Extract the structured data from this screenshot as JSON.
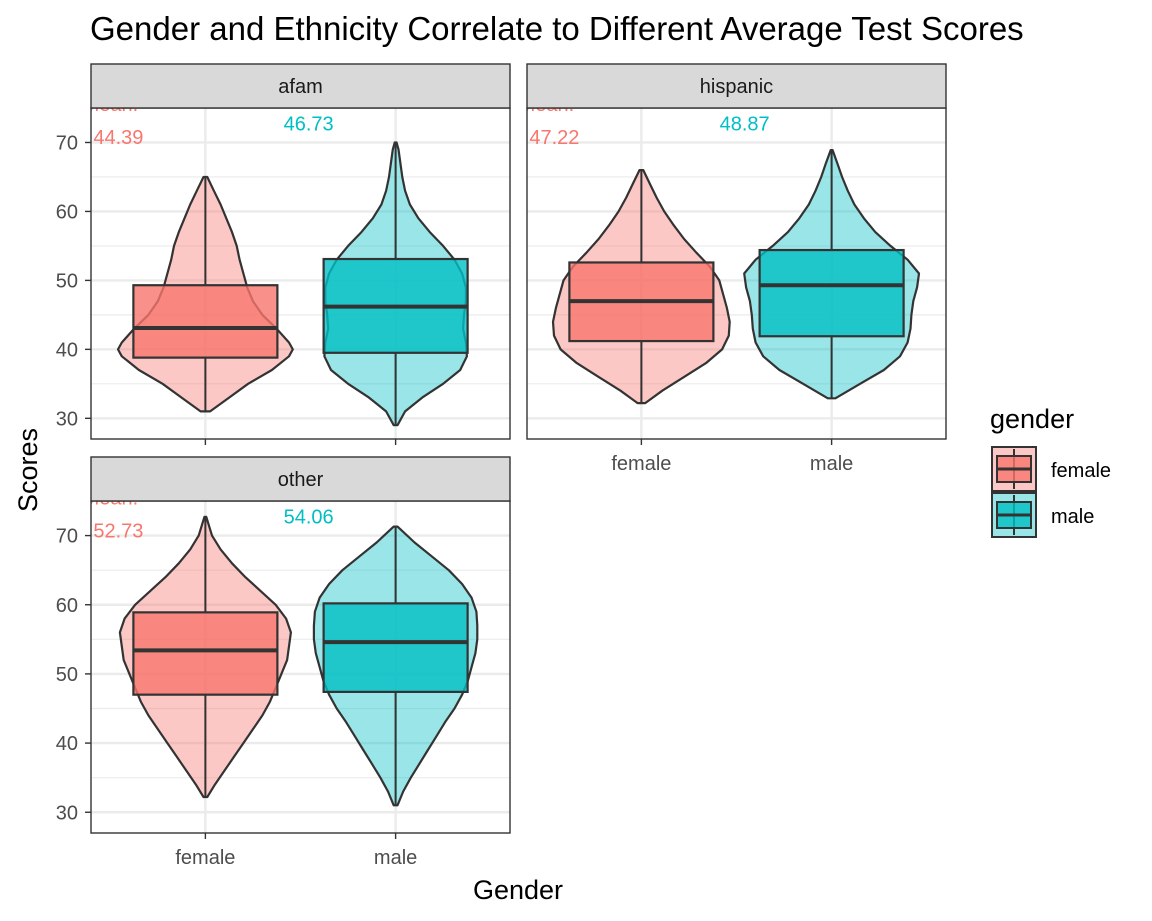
{
  "chart_data": {
    "type": "violin",
    "title": "Gender and Ethnicity Correlate to Different Average Test Scores",
    "xlabel": "Gender",
    "ylabel": "Scores",
    "ylim": [
      27,
      75
    ],
    "yticks": [
      30,
      40,
      50,
      60,
      70
    ],
    "categories": [
      "female",
      "male"
    ],
    "legend": {
      "title": "gender",
      "position": "right",
      "entries": [
        {
          "label": "female",
          "color": "#F8766D"
        },
        {
          "label": "male",
          "color": "#00BFC4"
        }
      ]
    },
    "colors": {
      "female": "#F8766D",
      "male": "#00BFC4",
      "strip": "#d9d9d9",
      "grid": "#ebebeb",
      "outline": "#333333"
    },
    "panels": [
      {
        "name": "afam",
        "groups": [
          {
            "gender": "female",
            "min": 31.0,
            "max": 65.0,
            "q1": 38.8,
            "median": 43.1,
            "q3": 49.3,
            "mean_label": "Mean:",
            "mean_value": "44.39",
            "density": [
              [
                31,
                0.05
              ],
              [
                33,
                0.25
              ],
              [
                35,
                0.45
              ],
              [
                37,
                0.7
              ],
              [
                39,
                0.88
              ],
              [
                40,
                0.92
              ],
              [
                41,
                0.88
              ],
              [
                43,
                0.75
              ],
              [
                45,
                0.6
              ],
              [
                47,
                0.5
              ],
              [
                49,
                0.44
              ],
              [
                51,
                0.4
              ],
              [
                53,
                0.36
              ],
              [
                55,
                0.33
              ],
              [
                57,
                0.28
              ],
              [
                59,
                0.22
              ],
              [
                61,
                0.16
              ],
              [
                63,
                0.09
              ],
              [
                65,
                0.02
              ]
            ]
          },
          {
            "gender": "male",
            "min": 29.0,
            "max": 70.0,
            "q1": 39.5,
            "median": 46.2,
            "q3": 53.1,
            "mean_label": "Mean:",
            "mean_value": "46.73",
            "density": [
              [
                29,
                0.02
              ],
              [
                31,
                0.1
              ],
              [
                33,
                0.28
              ],
              [
                35,
                0.5
              ],
              [
                37,
                0.68
              ],
              [
                39,
                0.75
              ],
              [
                41,
                0.74
              ],
              [
                43,
                0.71
              ],
              [
                45,
                0.72
              ],
              [
                47,
                0.74
              ],
              [
                49,
                0.74
              ],
              [
                51,
                0.7
              ],
              [
                53,
                0.62
              ],
              [
                55,
                0.5
              ],
              [
                57,
                0.36
              ],
              [
                59,
                0.24
              ],
              [
                61,
                0.15
              ],
              [
                63,
                0.1
              ],
              [
                65,
                0.07
              ],
              [
                67,
                0.05
              ],
              [
                69,
                0.03
              ],
              [
                70,
                0.01
              ]
            ]
          }
        ]
      },
      {
        "name": "hispanic",
        "groups": [
          {
            "gender": "female",
            "min": 32.2,
            "max": 66.0,
            "q1": 41.2,
            "median": 47.0,
            "q3": 52.6,
            "mean_label": "Mean:",
            "mean_value": "47.22",
            "density": [
              [
                32.2,
                0.04
              ],
              [
                34,
                0.22
              ],
              [
                36,
                0.45
              ],
              [
                38,
                0.68
              ],
              [
                40,
                0.85
              ],
              [
                42,
                0.92
              ],
              [
                44,
                0.93
              ],
              [
                46,
                0.9
              ],
              [
                48,
                0.86
              ],
              [
                50,
                0.82
              ],
              [
                52,
                0.72
              ],
              [
                54,
                0.58
              ],
              [
                56,
                0.45
              ],
              [
                58,
                0.34
              ],
              [
                60,
                0.24
              ],
              [
                62,
                0.16
              ],
              [
                64,
                0.09
              ],
              [
                66,
                0.02
              ]
            ]
          },
          {
            "gender": "male",
            "min": 32.9,
            "max": 68.9,
            "q1": 41.9,
            "median": 49.3,
            "q3": 54.4,
            "mean_label": "Mean:",
            "mean_value": "48.87",
            "density": [
              [
                32.9,
                0.04
              ],
              [
                35,
                0.3
              ],
              [
                37,
                0.55
              ],
              [
                39,
                0.72
              ],
              [
                41,
                0.8
              ],
              [
                43,
                0.83
              ],
              [
                45,
                0.84
              ],
              [
                47,
                0.86
              ],
              [
                49,
                0.9
              ],
              [
                51,
                0.92
              ],
              [
                53,
                0.8
              ],
              [
                55,
                0.62
              ],
              [
                57,
                0.46
              ],
              [
                59,
                0.34
              ],
              [
                61,
                0.24
              ],
              [
                63,
                0.17
              ],
              [
                65,
                0.11
              ],
              [
                67,
                0.06
              ],
              [
                68.9,
                0.01
              ]
            ]
          }
        ]
      },
      {
        "name": "other",
        "groups": [
          {
            "gender": "female",
            "min": 32.2,
            "max": 72.7,
            "q1": 47.0,
            "median": 53.4,
            "q3": 58.9,
            "mean_label": "Mean:",
            "mean_value": "52.73",
            "density": [
              [
                32.2,
                0.02
              ],
              [
                34,
                0.1
              ],
              [
                36,
                0.2
              ],
              [
                38,
                0.3
              ],
              [
                40,
                0.4
              ],
              [
                42,
                0.5
              ],
              [
                44,
                0.6
              ],
              [
                46,
                0.68
              ],
              [
                48,
                0.74
              ],
              [
                50,
                0.8
              ],
              [
                52,
                0.86
              ],
              [
                54,
                0.88
              ],
              [
                56,
                0.9
              ],
              [
                58,
                0.85
              ],
              [
                60,
                0.74
              ],
              [
                62,
                0.58
              ],
              [
                64,
                0.42
              ],
              [
                66,
                0.28
              ],
              [
                68,
                0.16
              ],
              [
                70,
                0.07
              ],
              [
                72.7,
                0.01
              ]
            ]
          },
          {
            "gender": "male",
            "min": 31.0,
            "max": 71.3,
            "q1": 47.4,
            "median": 54.6,
            "q3": 60.2,
            "mean_label": "Mean:",
            "mean_value": "54.06",
            "density": [
              [
                31,
                0.02
              ],
              [
                33,
                0.08
              ],
              [
                35,
                0.16
              ],
              [
                37,
                0.25
              ],
              [
                39,
                0.34
              ],
              [
                41,
                0.43
              ],
              [
                43,
                0.52
              ],
              [
                45,
                0.62
              ],
              [
                47,
                0.7
              ],
              [
                49,
                0.76
              ],
              [
                51,
                0.8
              ],
              [
                53,
                0.84
              ],
              [
                55,
                0.86
              ],
              [
                57,
                0.86
              ],
              [
                59,
                0.85
              ],
              [
                61,
                0.8
              ],
              [
                63,
                0.7
              ],
              [
                65,
                0.56
              ],
              [
                67,
                0.38
              ],
              [
                69,
                0.2
              ],
              [
                71.3,
                0.02
              ]
            ]
          }
        ]
      }
    ]
  }
}
